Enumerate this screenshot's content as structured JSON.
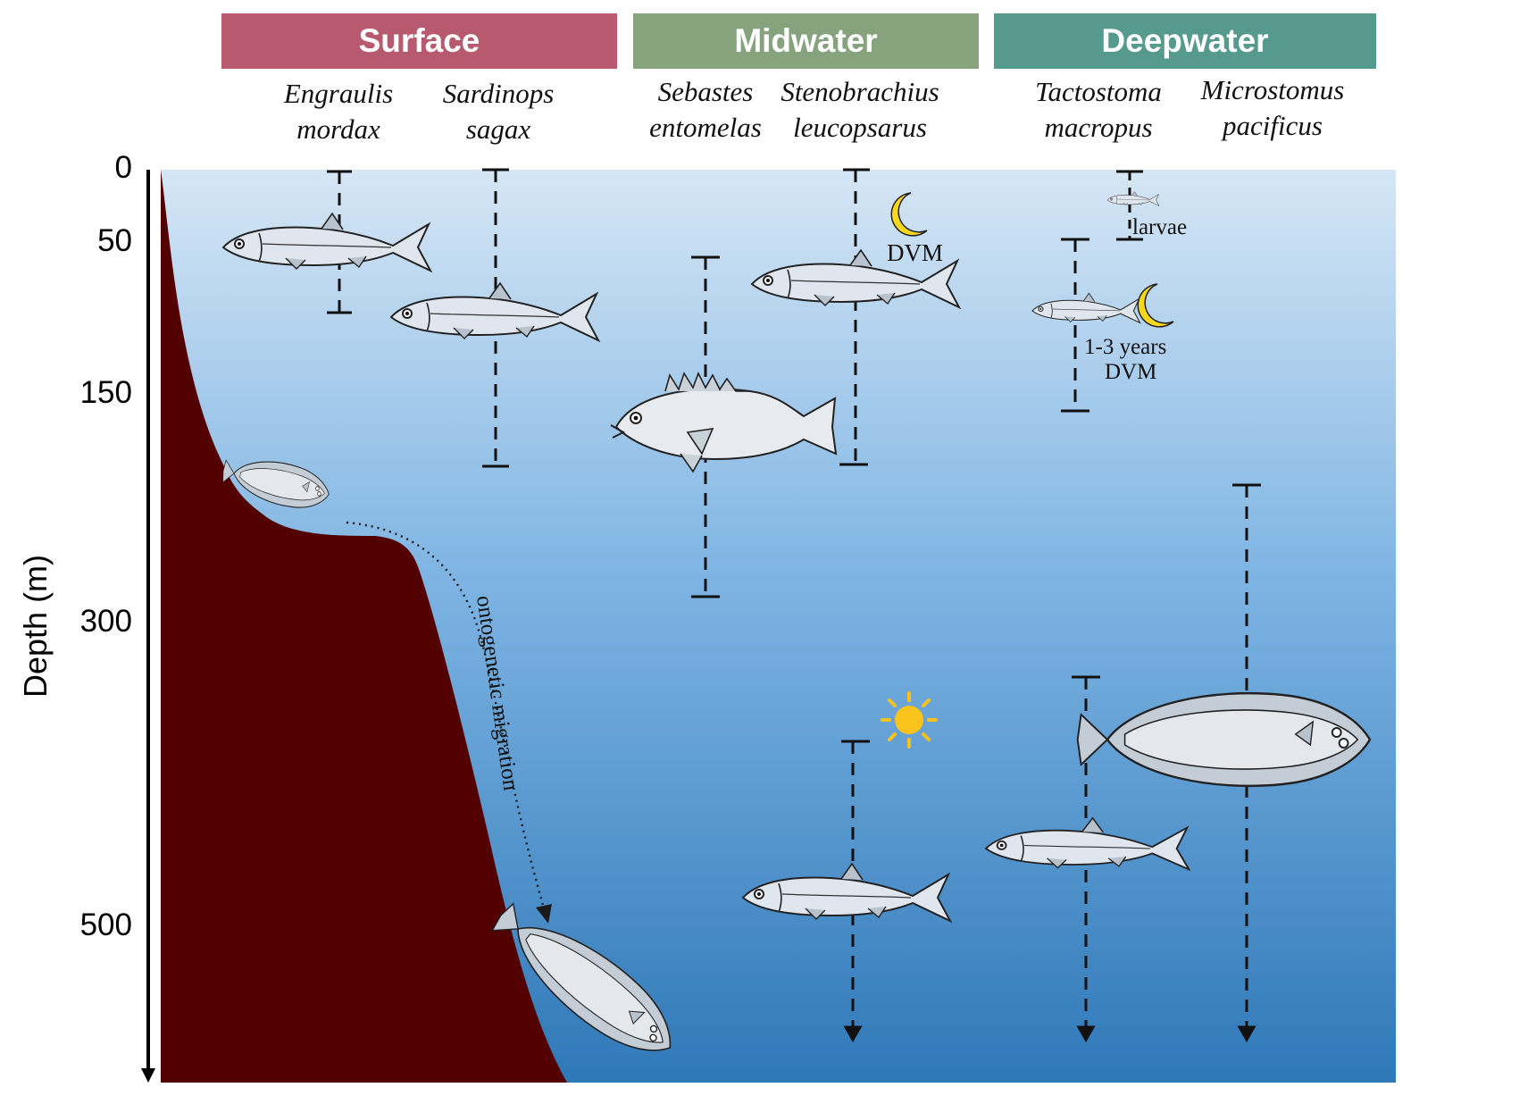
{
  "zones": [
    {
      "label": "Surface",
      "color": "#b85a6f"
    },
    {
      "label": "Midwater",
      "color": "#86a37e"
    },
    {
      "label": "Deepwater",
      "color": "#569a8e"
    }
  ],
  "species": [
    {
      "genus": "Engraulis",
      "epithet": "mordax"
    },
    {
      "genus": "Sardinops",
      "epithet": "sagax"
    },
    {
      "genus": "Sebastes",
      "epithet": "entomelas"
    },
    {
      "genus": "Stenobrachius",
      "epithet": "leucopsarus"
    },
    {
      "genus": "Tactostoma",
      "epithet": "macropus"
    },
    {
      "genus": "Microstomus",
      "epithet": "pacificus"
    }
  ],
  "axis": {
    "label": "Depth (m)",
    "ticks": [
      "0",
      "50",
      "150",
      "300",
      "500"
    ]
  },
  "annotations": {
    "dvm": "DVM",
    "larvae": "larvae",
    "years": "1-3 years",
    "years_dvm": "DVM",
    "migration": "ontogenetic migration"
  },
  "colors": {
    "water_top": "#d6e6f5",
    "water_bottom": "#2f78b8",
    "seafloor": "#520000",
    "moon": "#f7d81e",
    "sun": "#f9c31c"
  },
  "icons": [
    "moon-icon",
    "sun-icon",
    "fish-illustration",
    "flatfish-illustration"
  ]
}
